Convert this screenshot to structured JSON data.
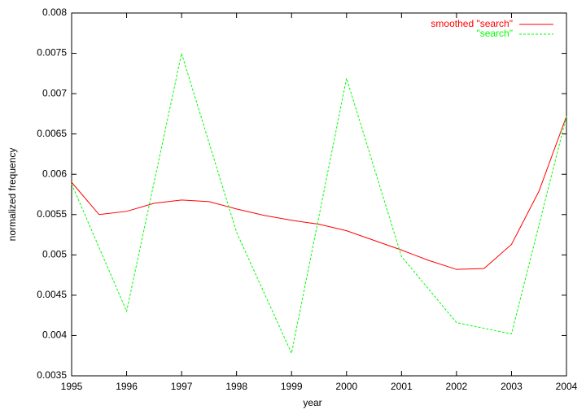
{
  "chart_data": {
    "type": "line",
    "x_label": "year",
    "y_label": "normalized frequency",
    "xlim": [
      1995,
      2004
    ],
    "xticks": [
      1995,
      1996,
      1997,
      1998,
      1999,
      2000,
      2001,
      2002,
      2003,
      2004
    ],
    "ylim": [
      0.0035,
      0.008
    ],
    "yticks": [
      0.0035,
      0.004,
      0.0045,
      0.005,
      0.0055,
      0.006,
      0.0065,
      0.007,
      0.0075,
      0.008
    ],
    "legend": "top-right",
    "series": [
      {
        "name": "smoothed \"search\"",
        "color": "#ff0000",
        "x": [
          1995,
          1995.5,
          1996,
          1996.5,
          1997,
          1997.5,
          1998,
          1998.5,
          1999,
          1999.5,
          2000,
          2000.5,
          2001,
          2001.5,
          2002,
          2002.5,
          2003,
          2003.5,
          2004
        ],
        "values": [
          0.0059,
          0.0055,
          0.00554,
          0.00564,
          0.00568,
          0.00566,
          0.00557,
          0.00549,
          0.00543,
          0.00538,
          0.0053,
          0.00518,
          0.00506,
          0.00493,
          0.00482,
          0.00483,
          0.00513,
          0.00579,
          0.00672
        ]
      },
      {
        "name": "\"search\"",
        "color": "#00ff00",
        "dashed": true,
        "x": [
          1995,
          1996,
          1997,
          1998,
          1999,
          2000,
          2001,
          2002,
          2003,
          2004
        ],
        "values": [
          0.00588,
          0.0043,
          0.0075,
          0.00528,
          0.00378,
          0.00719,
          0.00498,
          0.00416,
          0.00402,
          0.00672
        ]
      }
    ]
  }
}
